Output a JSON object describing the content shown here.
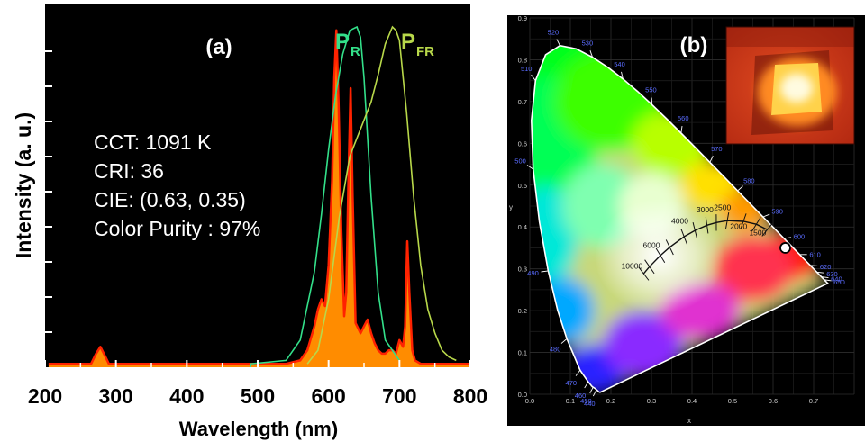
{
  "chart_data": [
    {
      "type": "line",
      "panel_label": "(a)",
      "xlabel": "Wavelength (nm)",
      "ylabel": "Intensity (a. u.)",
      "xlim": [
        200,
        800
      ],
      "xticks": [
        "200",
        "300",
        "400",
        "500",
        "600",
        "700",
        "800"
      ],
      "grid": false,
      "annotations": [
        "CCT: 1091 K",
        "CRI: 36",
        "CIE: (0.63, 0.35)",
        "Color Purity : 97%"
      ],
      "series_labels": [
        {
          "main": "P",
          "sub": "R",
          "color": "#33e08a"
        },
        {
          "main": "P",
          "sub": "FR",
          "color": "#b8d84a"
        }
      ],
      "series": [
        {
          "name": "",
          "color": "#ff2200",
          "fill": "#ff8c00",
          "x": [
            205,
            265,
            272,
            278,
            283,
            290,
            300,
            400,
            500,
            540,
            560,
            570,
            580,
            585,
            590,
            595,
            600,
            605,
            608,
            611,
            614,
            618,
            622,
            625,
            628,
            631,
            634,
            638,
            645,
            650,
            655,
            660,
            665,
            670,
            675,
            680,
            685,
            690,
            695,
            700,
            705,
            708,
            711,
            714,
            718,
            722,
            730,
            740,
            800
          ],
          "y": [
            0.01,
            0.01,
            0.04,
            0.06,
            0.04,
            0.01,
            0.01,
            0.01,
            0.01,
            0.01,
            0.02,
            0.05,
            0.12,
            0.17,
            0.2,
            0.18,
            0.3,
            0.55,
            0.85,
            0.99,
            0.78,
            0.4,
            0.15,
            0.22,
            0.55,
            0.82,
            0.5,
            0.13,
            0.1,
            0.12,
            0.14,
            0.1,
            0.07,
            0.05,
            0.04,
            0.04,
            0.05,
            0.05,
            0.04,
            0.08,
            0.06,
            0.12,
            0.37,
            0.22,
            0.05,
            0.02,
            0.01,
            0.01,
            0.01
          ]
        },
        {
          "name": "",
          "color": "#33e08a",
          "x": [
            490,
            540,
            560,
            580,
            590,
            600,
            610,
            620,
            630,
            640,
            645,
            650,
            660,
            670,
            680,
            700
          ],
          "y": [
            0.01,
            0.02,
            0.08,
            0.28,
            0.45,
            0.64,
            0.8,
            0.92,
            0.99,
            1.0,
            0.97,
            0.85,
            0.5,
            0.22,
            0.08,
            0.02
          ],
          "baseline_start": 490
        },
        {
          "name": "",
          "color": "#b8d84a",
          "x": [
            570,
            585,
            600,
            615,
            630,
            645,
            660,
            670,
            680,
            690,
            695,
            700,
            710,
            720,
            730,
            740,
            750,
            760,
            770,
            780
          ],
          "y": [
            0.01,
            0.05,
            0.2,
            0.44,
            0.62,
            0.7,
            0.78,
            0.86,
            0.95,
            1.0,
            0.99,
            0.96,
            0.75,
            0.5,
            0.3,
            0.17,
            0.1,
            0.05,
            0.03,
            0.02
          ]
        }
      ]
    },
    {
      "type": "scatter",
      "panel_label": "(b)",
      "xlabel": "x",
      "ylabel": "y",
      "xlim": [
        0,
        0.8
      ],
      "ylim": [
        0,
        0.9
      ],
      "xticks": [
        "0.0",
        "0.1",
        "0.2",
        "0.3",
        "0.4",
        "0.5",
        "0.6",
        "0.7"
      ],
      "yticks": [
        "0.0",
        "0.1",
        "0.2",
        "0.3",
        "0.4",
        "0.5",
        "0.6",
        "0.7",
        "0.8",
        "0.9"
      ],
      "grid": true,
      "spectral_locus": [
        [
          0.1741,
          0.005
        ],
        [
          0.1738,
          0.0049
        ],
        [
          0.1727,
          0.0048
        ],
        [
          0.1703,
          0.0058
        ],
        [
          0.1666,
          0.0089
        ],
        [
          0.1611,
          0.0138
        ],
        [
          0.1541,
          0.0181
        ],
        [
          0.144,
          0.0297
        ],
        [
          0.1241,
          0.0578
        ],
        [
          0.0913,
          0.1327
        ],
        [
          0.0687,
          0.2007
        ],
        [
          0.0454,
          0.295
        ],
        [
          0.0235,
          0.4127
        ],
        [
          0.0082,
          0.5384
        ],
        [
          0.0039,
          0.6548
        ],
        [
          0.0139,
          0.7502
        ],
        [
          0.0389,
          0.812
        ],
        [
          0.0743,
          0.8338
        ],
        [
          0.1142,
          0.8262
        ],
        [
          0.1547,
          0.8059
        ],
        [
          0.1929,
          0.7816
        ],
        [
          0.2296,
          0.7543
        ],
        [
          0.2658,
          0.7243
        ],
        [
          0.3016,
          0.6923
        ],
        [
          0.3373,
          0.6589
        ],
        [
          0.3731,
          0.6245
        ],
        [
          0.4087,
          0.5896
        ],
        [
          0.4441,
          0.5547
        ],
        [
          0.4788,
          0.5202
        ],
        [
          0.5125,
          0.4866
        ],
        [
          0.5448,
          0.4544
        ],
        [
          0.5752,
          0.4242
        ],
        [
          0.6029,
          0.3965
        ],
        [
          0.627,
          0.3725
        ],
        [
          0.6482,
          0.3514
        ],
        [
          0.6658,
          0.334
        ],
        [
          0.6801,
          0.3197
        ],
        [
          0.6915,
          0.3083
        ],
        [
          0.7006,
          0.2993
        ],
        [
          0.7079,
          0.292
        ],
        [
          0.714,
          0.2859
        ],
        [
          0.719,
          0.2809
        ],
        [
          0.723,
          0.277
        ],
        [
          0.726,
          0.274
        ],
        [
          0.7283,
          0.2717
        ],
        [
          0.73,
          0.27
        ],
        [
          0.7347,
          0.2653
        ]
      ],
      "wavelength_labels": [
        {
          "text": "440",
          "x": 0.1644,
          "y": 0.0109
        },
        {
          "text": "450",
          "x": 0.1566,
          "y": 0.0177
        },
        {
          "text": "460",
          "x": 0.144,
          "y": 0.0297
        },
        {
          "text": "470",
          "x": 0.1241,
          "y": 0.0578
        },
        {
          "text": "480",
          "x": 0.0913,
          "y": 0.1327
        },
        {
          "text": "490",
          "x": 0.0454,
          "y": 0.295
        },
        {
          "text": "500",
          "x": 0.0082,
          "y": 0.5384
        },
        {
          "text": "510",
          "x": 0.0139,
          "y": 0.7502
        },
        {
          "text": "520",
          "x": 0.0743,
          "y": 0.8338
        },
        {
          "text": "530",
          "x": 0.1547,
          "y": 0.8059
        },
        {
          "text": "540",
          "x": 0.2296,
          "y": 0.7543
        },
        {
          "text": "550",
          "x": 0.3016,
          "y": 0.6923
        },
        {
          "text": "560",
          "x": 0.3731,
          "y": 0.6245
        },
        {
          "text": "570",
          "x": 0.4441,
          "y": 0.5547
        },
        {
          "text": "580",
          "x": 0.5125,
          "y": 0.4866
        },
        {
          "text": "590",
          "x": 0.5752,
          "y": 0.4242
        },
        {
          "text": "600",
          "x": 0.627,
          "y": 0.3725
        },
        {
          "text": "610",
          "x": 0.6658,
          "y": 0.334
        },
        {
          "text": "620",
          "x": 0.6915,
          "y": 0.3083
        },
        {
          "text": "630",
          "x": 0.7079,
          "y": 0.292
        },
        {
          "text": "640",
          "x": 0.719,
          "y": 0.2809
        },
        {
          "text": "650",
          "x": 0.726,
          "y": 0.274
        }
      ],
      "planckian_locus": [
        [
          0.2807,
          0.2884
        ],
        [
          0.2952,
          0.3051
        ],
        [
          0.3221,
          0.3318
        ],
        [
          0.3451,
          0.3516
        ],
        [
          0.3805,
          0.3768
        ],
        [
          0.4074,
          0.3916
        ],
        [
          0.4369,
          0.4041
        ],
        [
          0.4599,
          0.4106
        ],
        [
          0.4869,
          0.4151
        ],
        [
          0.5266,
          0.4133
        ],
        [
          0.5586,
          0.4065
        ],
        [
          0.5857,
          0.3934
        ]
      ],
      "cct_labels": [
        {
          "text": "10000",
          "x": 0.252,
          "y": 0.3
        },
        {
          "text": "6000",
          "x": 0.3,
          "y": 0.35
        },
        {
          "text": "4000",
          "x": 0.37,
          "y": 0.408
        },
        {
          "text": "3000",
          "x": 0.432,
          "y": 0.435
        },
        {
          "text": "2500",
          "x": 0.475,
          "y": 0.44
        },
        {
          "text": "2000",
          "x": 0.515,
          "y": 0.395
        },
        {
          "text": "1500",
          "x": 0.562,
          "y": 0.38
        }
      ],
      "points": [
        {
          "x": 0.63,
          "y": 0.35
        }
      ]
    }
  ]
}
